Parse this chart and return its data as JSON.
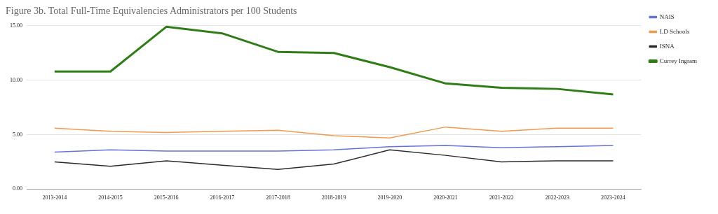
{
  "chart_data": {
    "type": "line",
    "title": "Figure 3b. Total Full-Time Equivalencies Administrators per 100 Students",
    "categories": [
      "2013-2014",
      "2014-2015",
      "2015-2016",
      "2016-2017",
      "2017-2018",
      "2018-2019",
      "2019-2020",
      "2020-2021",
      "2021-2022",
      "2022-2023",
      "2023-2024"
    ],
    "series": [
      {
        "name": "NAIS",
        "color": "#6373d6",
        "values": [
          3.4,
          3.6,
          3.5,
          3.5,
          3.5,
          3.6,
          3.9,
          4.0,
          3.8,
          3.9,
          4.0
        ]
      },
      {
        "name": "LD Schools",
        "color": "#ef9a4c",
        "values": [
          5.6,
          5.3,
          5.2,
          5.3,
          5.4,
          4.9,
          4.7,
          5.7,
          5.3,
          5.6,
          5.6
        ]
      },
      {
        "name": "ISNA",
        "color": "#2a2a2a",
        "values": [
          2.5,
          2.1,
          2.6,
          2.2,
          1.8,
          2.3,
          3.6,
          3.1,
          2.5,
          2.6,
          2.6
        ]
      },
      {
        "name": "Currey Ingram",
        "color": "#2e7d16",
        "values": [
          10.8,
          10.8,
          14.9,
          14.3,
          12.6,
          12.5,
          11.2,
          9.7,
          9.3,
          9.2,
          8.7
        ]
      }
    ],
    "ylim": [
      0,
      15
    ],
    "yticks": [
      {
        "value": 0,
        "label": "0.00"
      },
      {
        "value": 5,
        "label": "5.00"
      },
      {
        "value": 10,
        "label": "10.00"
      },
      {
        "value": 15,
        "label": "15.00"
      }
    ],
    "grid": "y",
    "legend": "top right",
    "marker": "none",
    "line_style": "solid"
  }
}
